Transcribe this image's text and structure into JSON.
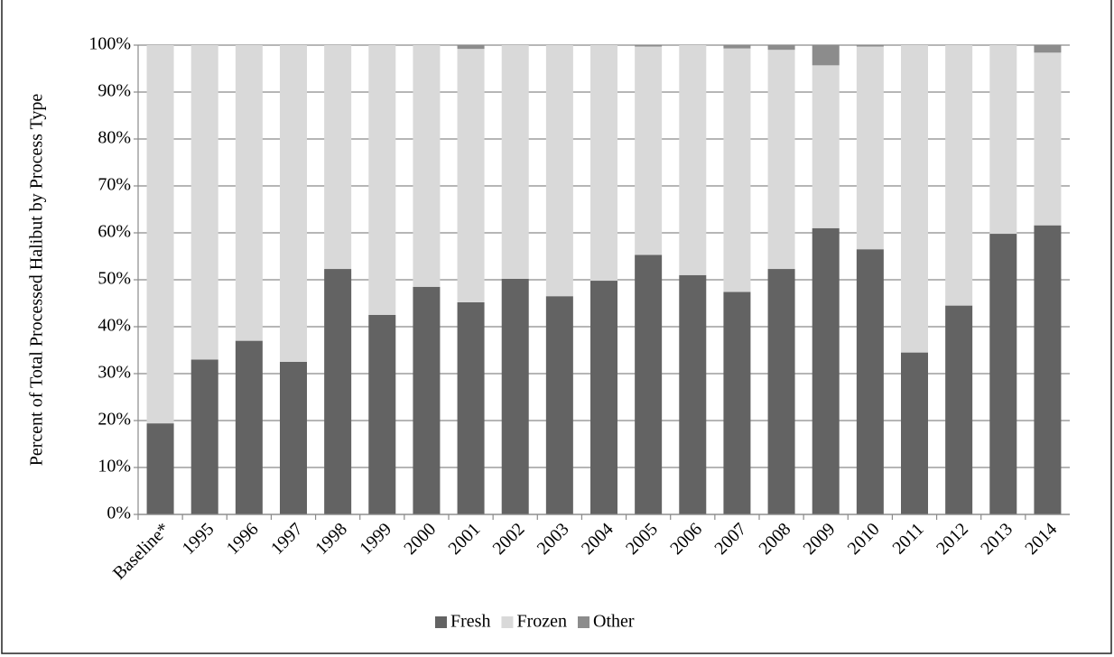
{
  "chart_data": {
    "type": "stacked_bar",
    "y_label": "Percent of Total Processed Halibut by Process Type",
    "categories": [
      "Baseline*",
      "1995",
      "1996",
      "1997",
      "1998",
      "1999",
      "2000",
      "2001",
      "2002",
      "2003",
      "2004",
      "2005",
      "2006",
      "2007",
      "2008",
      "2009",
      "2010",
      "2011",
      "2012",
      "2013",
      "2014"
    ],
    "series": [
      {
        "name": "Fresh",
        "color": "#636363",
        "values": [
          19.4,
          33,
          37,
          32.5,
          52.3,
          42.5,
          48.5,
          45.2,
          50.2,
          46.5,
          49.8,
          55.3,
          51,
          47.4,
          52.3,
          61,
          56.5,
          34.5,
          44.5,
          59.8,
          61.6
        ]
      },
      {
        "name": "Frozen",
        "color": "#d9d9d9",
        "values": [
          80.6,
          67,
          63,
          67.5,
          47.7,
          57.5,
          51.5,
          54,
          49.8,
          53.5,
          50.2,
          44.4,
          49,
          51.9,
          46.7,
          34.7,
          43.2,
          65.5,
          55.5,
          40.2,
          36.8
        ]
      },
      {
        "name": "Other",
        "color": "#8c8c8c",
        "values": [
          0,
          0,
          0,
          0,
          0,
          0,
          0,
          0.8,
          0,
          0,
          0,
          0.3,
          0,
          0.7,
          1,
          4.3,
          0.3,
          0,
          0,
          0,
          1.6
        ]
      }
    ],
    "ylim": [
      0,
      100
    ],
    "yticks": [
      {
        "value": 0,
        "label": "0%"
      },
      {
        "value": 10,
        "label": "10%"
      },
      {
        "value": 20,
        "label": "20%"
      },
      {
        "value": 30,
        "label": "30%"
      },
      {
        "value": 40,
        "label": "40%"
      },
      {
        "value": 50,
        "label": "50%"
      },
      {
        "value": 60,
        "label": "60%"
      },
      {
        "value": 70,
        "label": "70%"
      },
      {
        "value": 80,
        "label": "80%"
      },
      {
        "value": 90,
        "label": "90%"
      },
      {
        "value": 100,
        "label": "100%"
      }
    ],
    "grid": true,
    "legend": "bottom"
  }
}
